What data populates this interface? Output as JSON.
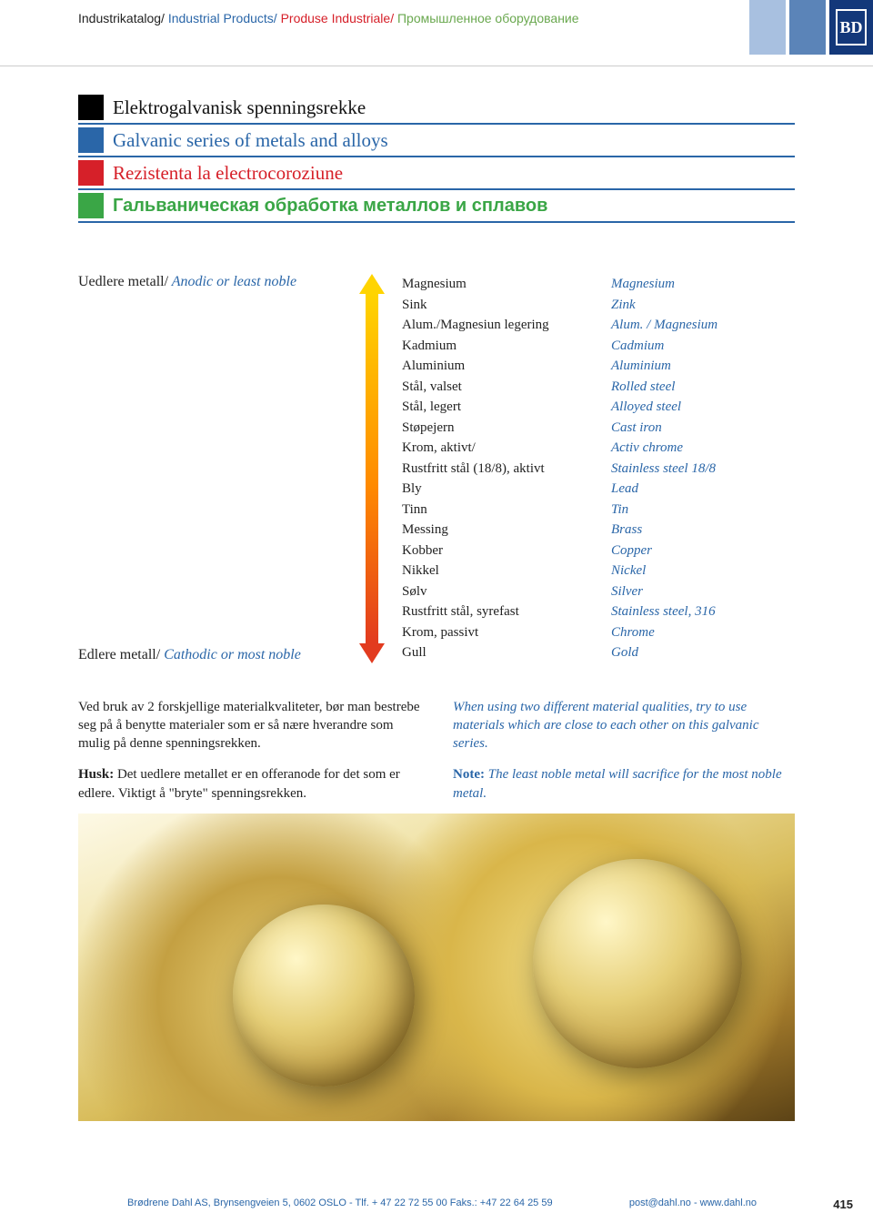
{
  "breadcrumb": {
    "no": "Industrikatalog/",
    "en": " Industrial Products/",
    "ro": " Produse Industriale/",
    "ru": " Промышленное оборудование"
  },
  "logo_text": "BD",
  "headings": {
    "no": "Elektrogalvanisk spenningsrekke",
    "en": "Galvanic series of metals and alloys",
    "ro": "Rezistenta la electrocoroziune",
    "ru": "Гальваническая обработка металлов и сплавов"
  },
  "labels": {
    "anodic_no": "Uedlere metall/",
    "anodic_en": " Anodic or least noble",
    "cathodic_no": "Edlere metall/",
    "cathodic_en": " Cathodic or most noble"
  },
  "series": [
    {
      "no": "Magnesium",
      "en": "Magnesium"
    },
    {
      "no": "Sink",
      "en": "Zink"
    },
    {
      "no": "Alum./Magnesiun legering",
      "en": "Alum. / Magnesium"
    },
    {
      "no": "Kadmium",
      "en": "Cadmium"
    },
    {
      "no": "Aluminium",
      "en": "Aluminium"
    },
    {
      "no": "Stål, valset",
      "en": "Rolled steel"
    },
    {
      "no": "Stål, legert",
      "en": "Alloyed steel"
    },
    {
      "no": "Støpejern",
      "en": "Cast iron"
    },
    {
      "no": "Krom, aktivt/",
      "en": "Activ chrome"
    },
    {
      "no": "Rustfritt stål (18/8), aktivt",
      "en": "Stainless steel 18/8"
    },
    {
      "no": "Bly",
      "en": "Lead"
    },
    {
      "no": "Tinn",
      "en": "Tin"
    },
    {
      "no": "Messing",
      "en": "Brass"
    },
    {
      "no": "Kobber",
      "en": "Copper"
    },
    {
      "no": "Nikkel",
      "en": "Nickel"
    },
    {
      "no": "Sølv",
      "en": "Silver"
    },
    {
      "no": "Rustfritt stål, syrefast",
      "en": "Stainless steel, 316"
    },
    {
      "no": "Krom, passivt",
      "en": "Chrome"
    },
    {
      "no": "Gull",
      "en": "Gold"
    }
  ],
  "notes": {
    "para1_no": "Ved bruk av 2 forskjellige materialkvaliteter, bør man bestrebe seg på å benytte materialer som er så nære hverandre som mulig på denne spenningsrekken.",
    "para1_en": "When using two different material qualities, try to use materials which are close to each other on this galvanic series.",
    "husk_label": "Husk:",
    "husk_text": " Det uedlere metallet er en offeranode for det som er edlere. Viktigt å \"bryte\" spenningsrekken.",
    "note_label": "Note:",
    "note_text": " The least noble metal will sacrifice for the most noble metal."
  },
  "footer": {
    "company": "Brødrene Dahl AS, Brynsengveien 5, 0602 OSLO - Tlf. + 47 22 72 55 00 Faks.: +47 22 64 25 59",
    "contact": "post@dahl.no - www.dahl.no",
    "page": "415"
  },
  "arrow": {
    "top_color": "#ffd400",
    "mid_color": "#ff8a00",
    "bottom_color": "#e23b1f"
  }
}
